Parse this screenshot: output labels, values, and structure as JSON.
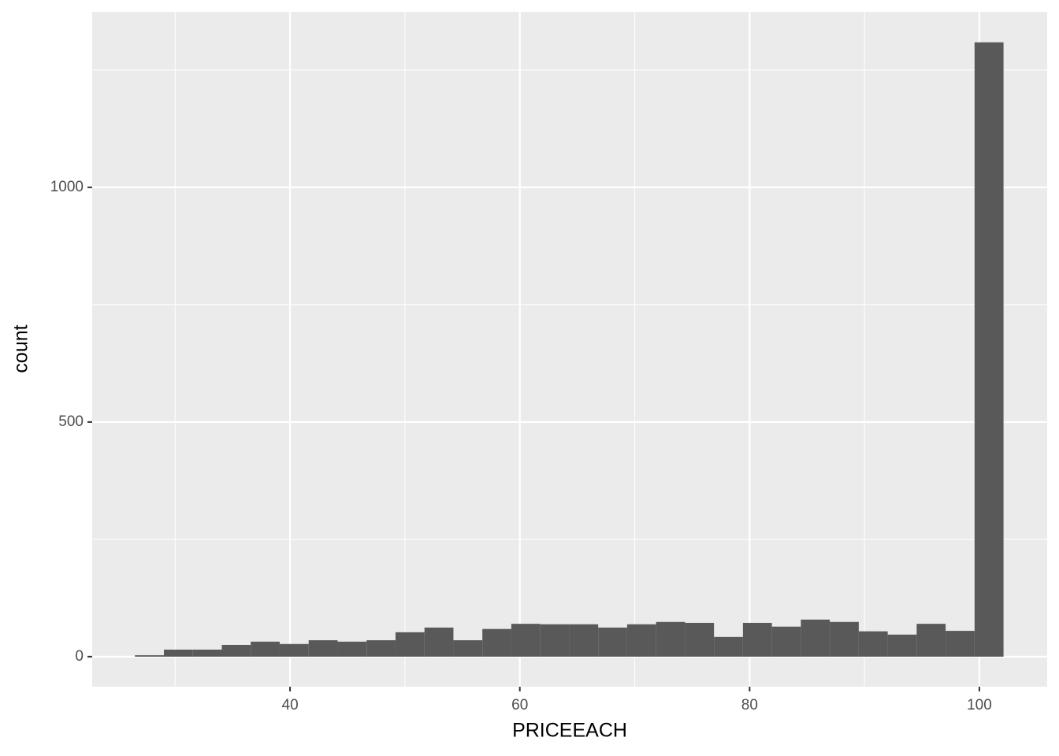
{
  "chart_data": {
    "type": "histogram",
    "x_label": "PRICEEACH",
    "y_label": "count",
    "bins": [
      26.5,
      29.02,
      31.54,
      34.06,
      36.58,
      39.1,
      41.62,
      44.14,
      46.66,
      49.18,
      51.7,
      54.22,
      56.74,
      59.26,
      61.78,
      64.3,
      66.82,
      69.34,
      71.86,
      74.38,
      76.9,
      79.42,
      81.94,
      84.46,
      86.98,
      89.5,
      92.02,
      94.54,
      97.06,
      99.58,
      102.1
    ],
    "values": [
      3,
      15,
      15,
      25,
      32,
      27,
      35,
      32,
      35,
      52,
      62,
      35,
      59,
      70,
      69,
      69,
      62,
      69,
      74,
      72,
      42,
      72,
      64,
      79,
      74,
      54,
      47,
      70,
      55,
      1309
    ],
    "color": "#595959",
    "xlim": [
      22.78,
      105.9
    ],
    "xticks": [
      40,
      60,
      80,
      100
    ],
    "xminor": [
      30,
      50,
      70,
      90
    ],
    "ylim": [
      -64,
      1374
    ],
    "yticks": [
      0,
      500,
      1000
    ],
    "yminor": [
      250,
      750,
      1250
    ],
    "grid": true
  }
}
